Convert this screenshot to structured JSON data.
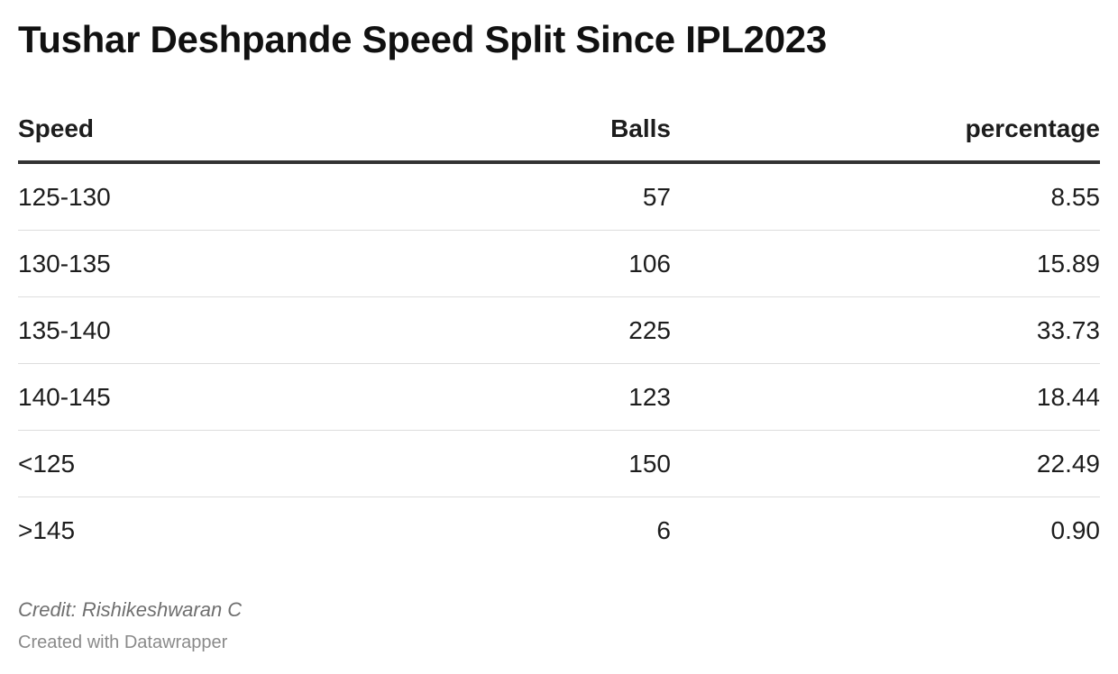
{
  "chart_data": {
    "type": "table",
    "title": "Tushar Deshpande Speed Split Since IPL2023",
    "columns": [
      "Speed",
      "Balls",
      "percentage"
    ],
    "rows": [
      [
        "125-130",
        "57",
        "8.55"
      ],
      [
        "130-135",
        "106",
        "15.89"
      ],
      [
        "135-140",
        "225",
        "33.73"
      ],
      [
        "140-145",
        "123",
        "18.44"
      ],
      [
        "<125",
        "150",
        "22.49"
      ],
      [
        ">145",
        "6",
        "0.90"
      ]
    ]
  },
  "footer": {
    "credit": "Credit: Rishikeshwaran C",
    "made_with": "Created with Datawrapper"
  }
}
